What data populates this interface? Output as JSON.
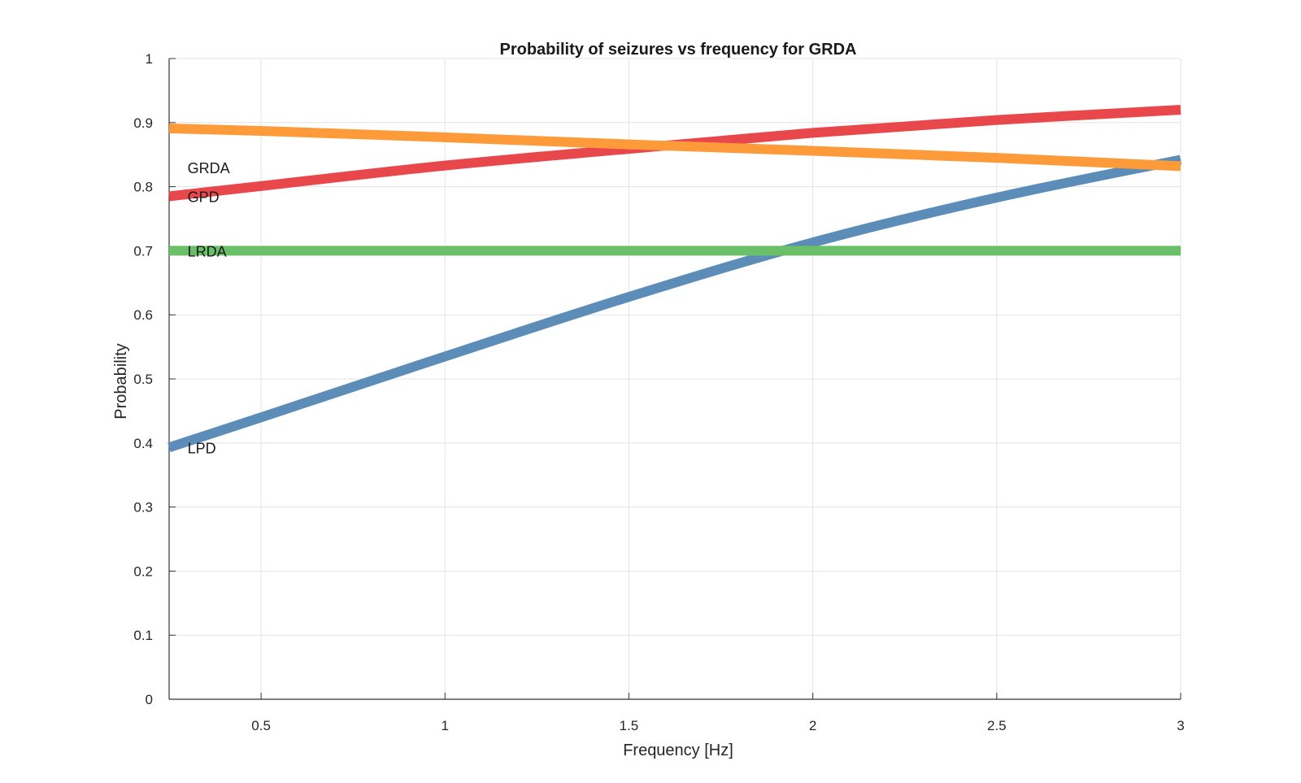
{
  "chart_data": {
    "type": "line",
    "title": "Probability of seizures vs frequency for GRDA",
    "xlabel": "Frequency [Hz]",
    "ylabel": "Probability",
    "xlim": [
      0.25,
      3
    ],
    "ylim": [
      0,
      1
    ],
    "grid": true,
    "legend": "none",
    "xticks": [
      0.5,
      1,
      1.5,
      2,
      2.5,
      3
    ],
    "xtick_labels": [
      "0.5",
      "1",
      "1.5",
      "2",
      "2.5",
      "3"
    ],
    "yticks": [
      0,
      0.1,
      0.2,
      0.3,
      0.4,
      0.5,
      0.6,
      0.7,
      0.8,
      0.9,
      1
    ],
    "ytick_labels": [
      "0",
      "0.1",
      "0.2",
      "0.3",
      "0.4",
      "0.5",
      "0.6",
      "0.7",
      "0.8",
      "0.9",
      "1"
    ],
    "x": [
      0.25,
      0.5,
      1,
      1.5,
      2,
      2.5,
      3
    ],
    "series": [
      {
        "name": "LPD",
        "color": "#5b8db8",
        "values": [
          0.393,
          0.44,
          0.535,
          0.628,
          0.713,
          0.783,
          0.842
        ]
      },
      {
        "name": "GPD",
        "color": "#e8474c",
        "values": [
          0.785,
          0.801,
          0.833,
          0.859,
          0.884,
          0.904,
          0.92
        ]
      },
      {
        "name": "LRDA",
        "color": "#6abf69",
        "values": [
          0.7,
          0.7,
          0.7,
          0.7,
          0.7,
          0.7,
          0.7
        ]
      },
      {
        "name": "GRDA",
        "color": "#fd9a3a",
        "values": [
          0.891,
          0.887,
          0.877,
          0.866,
          0.856,
          0.845,
          0.832
        ]
      }
    ],
    "series_labels": [
      {
        "text": "GRDA",
        "x": 0.3,
        "y": 0.83
      },
      {
        "text": "GPD",
        "x": 0.3,
        "y": 0.785
      },
      {
        "text": "LRDA",
        "x": 0.3,
        "y": 0.7
      },
      {
        "text": "LPD",
        "x": 0.3,
        "y": 0.393
      }
    ]
  }
}
